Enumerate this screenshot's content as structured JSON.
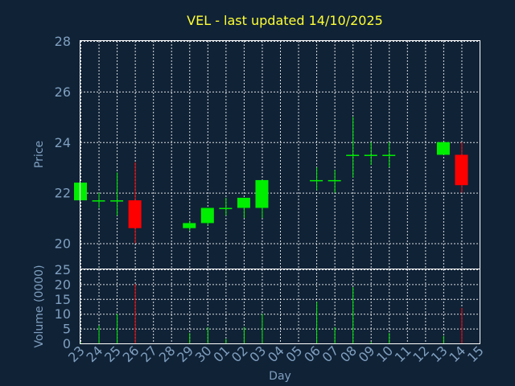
{
  "chart_data": {
    "type": "candlestick",
    "title": "VEL - last updated 14/10/2025",
    "xlabel": "Day",
    "ylabel_price": "Price",
    "ylabel_volume": "Volume (0000)",
    "x_ticks": [
      "23",
      "24",
      "25",
      "26",
      "27",
      "28",
      "29",
      "30",
      "01",
      "02",
      "03",
      "04",
      "05",
      "06",
      "07",
      "08",
      "09",
      "10",
      "11",
      "12",
      "13",
      "14",
      "15"
    ],
    "price_ticks": [
      20,
      22,
      24,
      26,
      28
    ],
    "volume_ticks": [
      0,
      5,
      10,
      15,
      20,
      25
    ],
    "price_ylim": [
      19,
      28
    ],
    "volume_ylim": [
      0,
      25
    ],
    "up_color": "#00ee00",
    "down_color": "#ff0000",
    "grid": true,
    "candles": [
      {
        "day": "23",
        "open": 21.7,
        "high": 22.4,
        "low": 21.7,
        "close": 22.4
      },
      {
        "day": "24",
        "open": 21.7,
        "high": 22.0,
        "low": 21.4,
        "close": 21.7
      },
      {
        "day": "25",
        "open": 21.7,
        "high": 22.8,
        "low": 21.1,
        "close": 21.7
      },
      {
        "day": "26",
        "open": 21.7,
        "high": 23.2,
        "low": 20.0,
        "close": 20.6
      },
      {
        "day": "29",
        "open": 20.6,
        "high": 20.9,
        "low": 20.5,
        "close": 20.8
      },
      {
        "day": "30",
        "open": 20.8,
        "high": 21.4,
        "low": 20.7,
        "close": 21.4
      },
      {
        "day": "01",
        "open": 21.4,
        "high": 21.8,
        "low": 21.1,
        "close": 21.4
      },
      {
        "day": "02",
        "open": 21.4,
        "high": 21.8,
        "low": 21.0,
        "close": 21.8
      },
      {
        "day": "03",
        "open": 21.4,
        "high": 22.5,
        "low": 21.0,
        "close": 22.5
      },
      {
        "day": "06",
        "open": 22.5,
        "high": 23.0,
        "low": 22.1,
        "close": 22.5
      },
      {
        "day": "07",
        "open": 22.5,
        "high": 22.9,
        "low": 22.0,
        "close": 22.5
      },
      {
        "day": "08",
        "open": 23.5,
        "high": 25.0,
        "low": 22.6,
        "close": 23.5
      },
      {
        "day": "09",
        "open": 23.5,
        "high": 24.0,
        "low": 23.1,
        "close": 23.5
      },
      {
        "day": "10",
        "open": 23.5,
        "high": 24.0,
        "low": 23.0,
        "close": 23.5
      },
      {
        "day": "13",
        "open": 23.5,
        "high": 24.0,
        "low": 23.5,
        "close": 24.0
      },
      {
        "day": "14",
        "open": 23.5,
        "high": 24.0,
        "low": 22.0,
        "close": 22.3
      }
    ],
    "volume": [
      {
        "day": "23",
        "value": 0.3,
        "color": "#00ee00"
      },
      {
        "day": "24",
        "value": 6,
        "color": "#00ee00"
      },
      {
        "day": "25",
        "value": 10,
        "color": "#00ee00"
      },
      {
        "day": "26",
        "value": 20,
        "color": "#ff0000"
      },
      {
        "day": "29",
        "value": 3.5,
        "color": "#00ee00"
      },
      {
        "day": "30",
        "value": 5.5,
        "color": "#00ee00"
      },
      {
        "day": "01",
        "value": 1.5,
        "color": "#00ee00"
      },
      {
        "day": "02",
        "value": 5.5,
        "color": "#00ee00"
      },
      {
        "day": "03",
        "value": 10,
        "color": "#00ee00"
      },
      {
        "day": "06",
        "value": 14,
        "color": "#00ee00"
      },
      {
        "day": "07",
        "value": 5.5,
        "color": "#00ee00"
      },
      {
        "day": "08",
        "value": 19,
        "color": "#00ee00"
      },
      {
        "day": "09",
        "value": 0.5,
        "color": "#00ee00"
      },
      {
        "day": "10",
        "value": 3.5,
        "color": "#00ee00"
      },
      {
        "day": "13",
        "value": 2.5,
        "color": "#00ee00"
      },
      {
        "day": "14",
        "value": 12,
        "color": "#ff0000"
      }
    ]
  }
}
